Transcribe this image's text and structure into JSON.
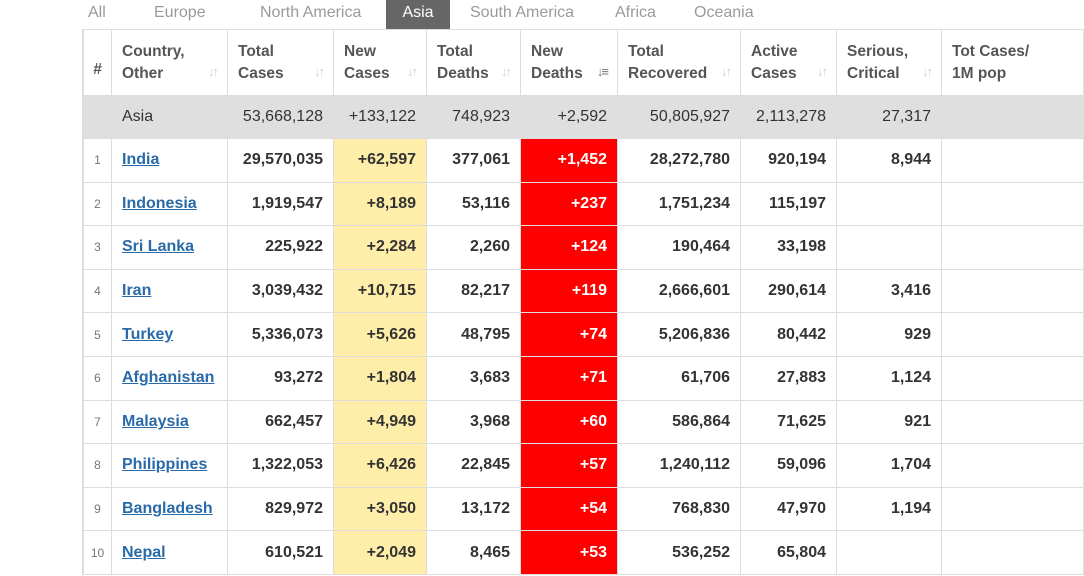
{
  "tabs": [
    {
      "label": "All",
      "active": false
    },
    {
      "label": "Europe",
      "active": false
    },
    {
      "label": "North America",
      "active": false
    },
    {
      "label": "Asia",
      "active": true
    },
    {
      "label": "South America",
      "active": false
    },
    {
      "label": "Africa",
      "active": false
    },
    {
      "label": "Oceania",
      "active": false
    }
  ],
  "headers": {
    "rank": "#",
    "country_l1": "Country,",
    "country_l2": "Other",
    "total_cases_l1": "Total",
    "total_cases_l2": "Cases",
    "new_cases_l1": "New",
    "new_cases_l2": "Cases",
    "total_deaths_l1": "Total",
    "total_deaths_l2": "Deaths",
    "new_deaths_l1": "New",
    "new_deaths_l2": "Deaths",
    "total_recovered_l1": "Total",
    "total_recovered_l2": "Recovered",
    "active_l1": "Active",
    "active_l2": "Cases",
    "serious_l1": "Serious,",
    "serious_l2": "Critical",
    "tot_l1": "Tot Cases/",
    "tot_l2": "1M pop"
  },
  "sort_icon": "sort-arrows-icon",
  "total_row": {
    "country": "Asia",
    "total_cases": "53,668,128",
    "new_cases": "+133,122",
    "total_deaths": "748,923",
    "new_deaths": "+2,592",
    "total_recovered": "50,805,927",
    "active_cases": "2,113,278",
    "serious": "27,317",
    "tot": ""
  },
  "rows": [
    {
      "rank": "1",
      "country": "India",
      "total_cases": "29,570,035",
      "new_cases": "+62,597",
      "total_deaths": "377,061",
      "new_deaths": "+1,452",
      "total_recovered": "28,272,780",
      "active_cases": "920,194",
      "serious": "8,944",
      "tot": ""
    },
    {
      "rank": "2",
      "country": "Indonesia",
      "total_cases": "1,919,547",
      "new_cases": "+8,189",
      "total_deaths": "53,116",
      "new_deaths": "+237",
      "total_recovered": "1,751,234",
      "active_cases": "115,197",
      "serious": "",
      "tot": ""
    },
    {
      "rank": "3",
      "country": "Sri Lanka",
      "total_cases": "225,922",
      "new_cases": "+2,284",
      "total_deaths": "2,260",
      "new_deaths": "+124",
      "total_recovered": "190,464",
      "active_cases": "33,198",
      "serious": "",
      "tot": ""
    },
    {
      "rank": "4",
      "country": "Iran",
      "total_cases": "3,039,432",
      "new_cases": "+10,715",
      "total_deaths": "82,217",
      "new_deaths": "+119",
      "total_recovered": "2,666,601",
      "active_cases": "290,614",
      "serious": "3,416",
      "tot": ""
    },
    {
      "rank": "5",
      "country": "Turkey",
      "total_cases": "5,336,073",
      "new_cases": "+5,626",
      "total_deaths": "48,795",
      "new_deaths": "+74",
      "total_recovered": "5,206,836",
      "active_cases": "80,442",
      "serious": "929",
      "tot": ""
    },
    {
      "rank": "6",
      "country": "Afghanistan",
      "total_cases": "93,272",
      "new_cases": "+1,804",
      "total_deaths": "3,683",
      "new_deaths": "+71",
      "total_recovered": "61,706",
      "active_cases": "27,883",
      "serious": "1,124",
      "tot": ""
    },
    {
      "rank": "7",
      "country": "Malaysia",
      "total_cases": "662,457",
      "new_cases": "+4,949",
      "total_deaths": "3,968",
      "new_deaths": "+60",
      "total_recovered": "586,864",
      "active_cases": "71,625",
      "serious": "921",
      "tot": ""
    },
    {
      "rank": "8",
      "country": "Philippines",
      "total_cases": "1,322,053",
      "new_cases": "+6,426",
      "total_deaths": "22,845",
      "new_deaths": "+57",
      "total_recovered": "1,240,112",
      "active_cases": "59,096",
      "serious": "1,704",
      "tot": ""
    },
    {
      "rank": "9",
      "country": "Bangladesh",
      "total_cases": "829,972",
      "new_cases": "+3,050",
      "total_deaths": "13,172",
      "new_deaths": "+54",
      "total_recovered": "768,830",
      "active_cases": "47,970",
      "serious": "1,194",
      "tot": ""
    },
    {
      "rank": "10",
      "country": "Nepal",
      "total_cases": "610,521",
      "new_cases": "+2,049",
      "total_deaths": "8,465",
      "new_deaths": "+53",
      "total_recovered": "536,252",
      "active_cases": "65,804",
      "serious": "",
      "tot": ""
    }
  ],
  "colors": {
    "new_cases_bg": "#ffeeaa",
    "new_deaths_bg": "#ff0000",
    "active_tab_bg": "#666666",
    "total_row_bg": "#dfdfdf",
    "link": "#2a6aa8"
  }
}
